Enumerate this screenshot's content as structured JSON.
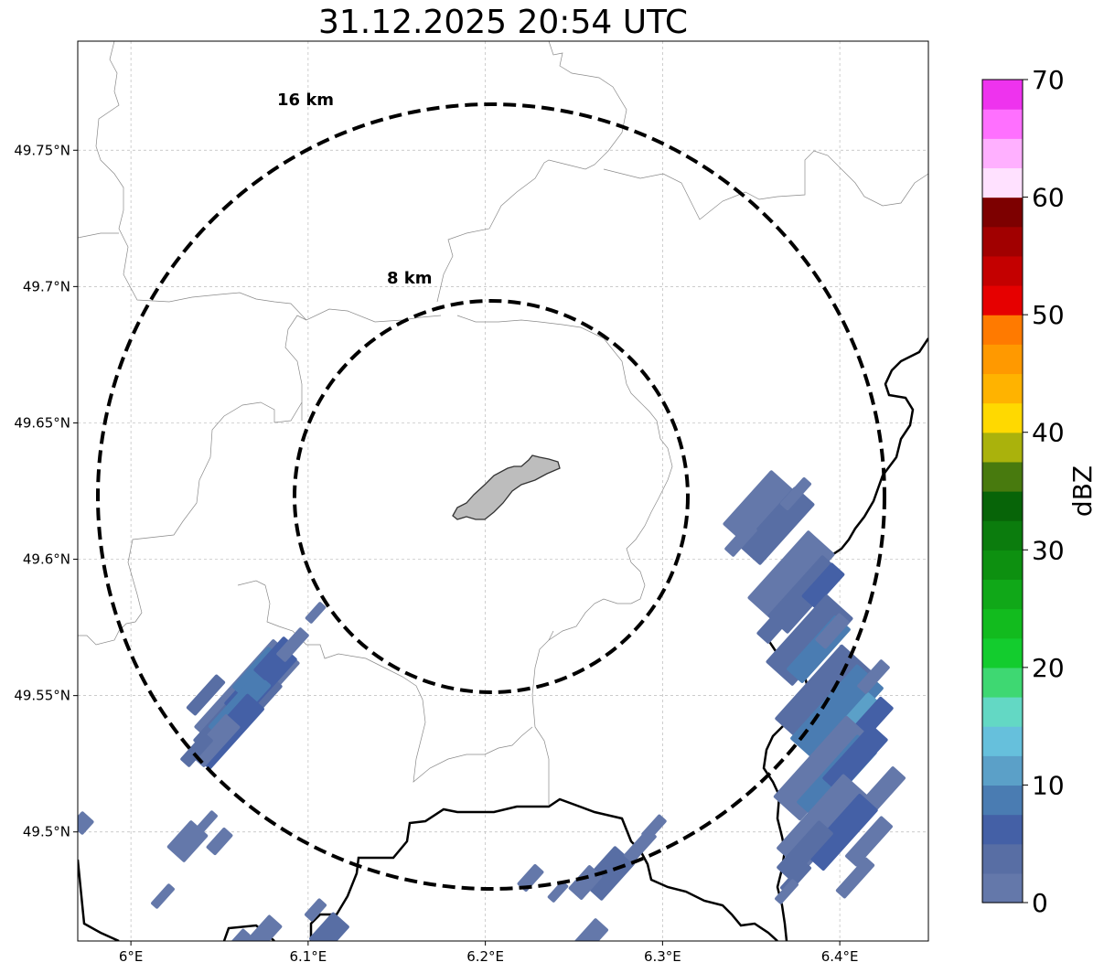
{
  "title": "31.12.2025 20:54 UTC",
  "map": {
    "lat_ticks": [
      49.75,
      49.7,
      49.65,
      49.6,
      49.55,
      49.5
    ],
    "lat_labels": [
      "49.75°N",
      "49.7°N",
      "49.65°N",
      "49.6°N",
      "49.55°N",
      "49.5°N"
    ],
    "lon_ticks": [
      6.0,
      6.1,
      6.2,
      6.3,
      6.4
    ],
    "lon_labels": [
      "6°E",
      "6.1°E",
      "6.2°E",
      "6.3°E",
      "6.4°E"
    ],
    "lon_range": [
      5.97,
      6.45
    ],
    "lat_range": [
      49.46,
      49.79
    ],
    "grid": true
  },
  "rings": [
    {
      "label": "16 km",
      "radius_km": 16
    },
    {
      "label": "8 km",
      "radius_km": 8
    }
  ],
  "colorbar": {
    "label": "dBZ",
    "min": 0,
    "max": 70,
    "step": 2.5,
    "tick_values": [
      0,
      10,
      20,
      30,
      40,
      50,
      60,
      70
    ],
    "tick_labels": [
      "0",
      "10",
      "20",
      "30",
      "40",
      "50",
      "60",
      "70"
    ],
    "colors": [
      "#6478aa",
      "#586ea4",
      "#4460a6",
      "#4a7cb2",
      "#5ba0c8",
      "#66c0dc",
      "#63d8c4",
      "#3ed872",
      "#13cc2e",
      "#12bb1e",
      "#10a818",
      "#0d9010",
      "#0b7c0d",
      "#076408",
      "#487a0e",
      "#aab20c",
      "#ffd900",
      "#ffb300",
      "#ff9900",
      "#ff7a00",
      "#e60000",
      "#c40000",
      "#a10000",
      "#7d0000",
      "#ffe1ff",
      "#ffb0ff",
      "#ff70ff",
      "#ee33ee"
    ]
  }
}
